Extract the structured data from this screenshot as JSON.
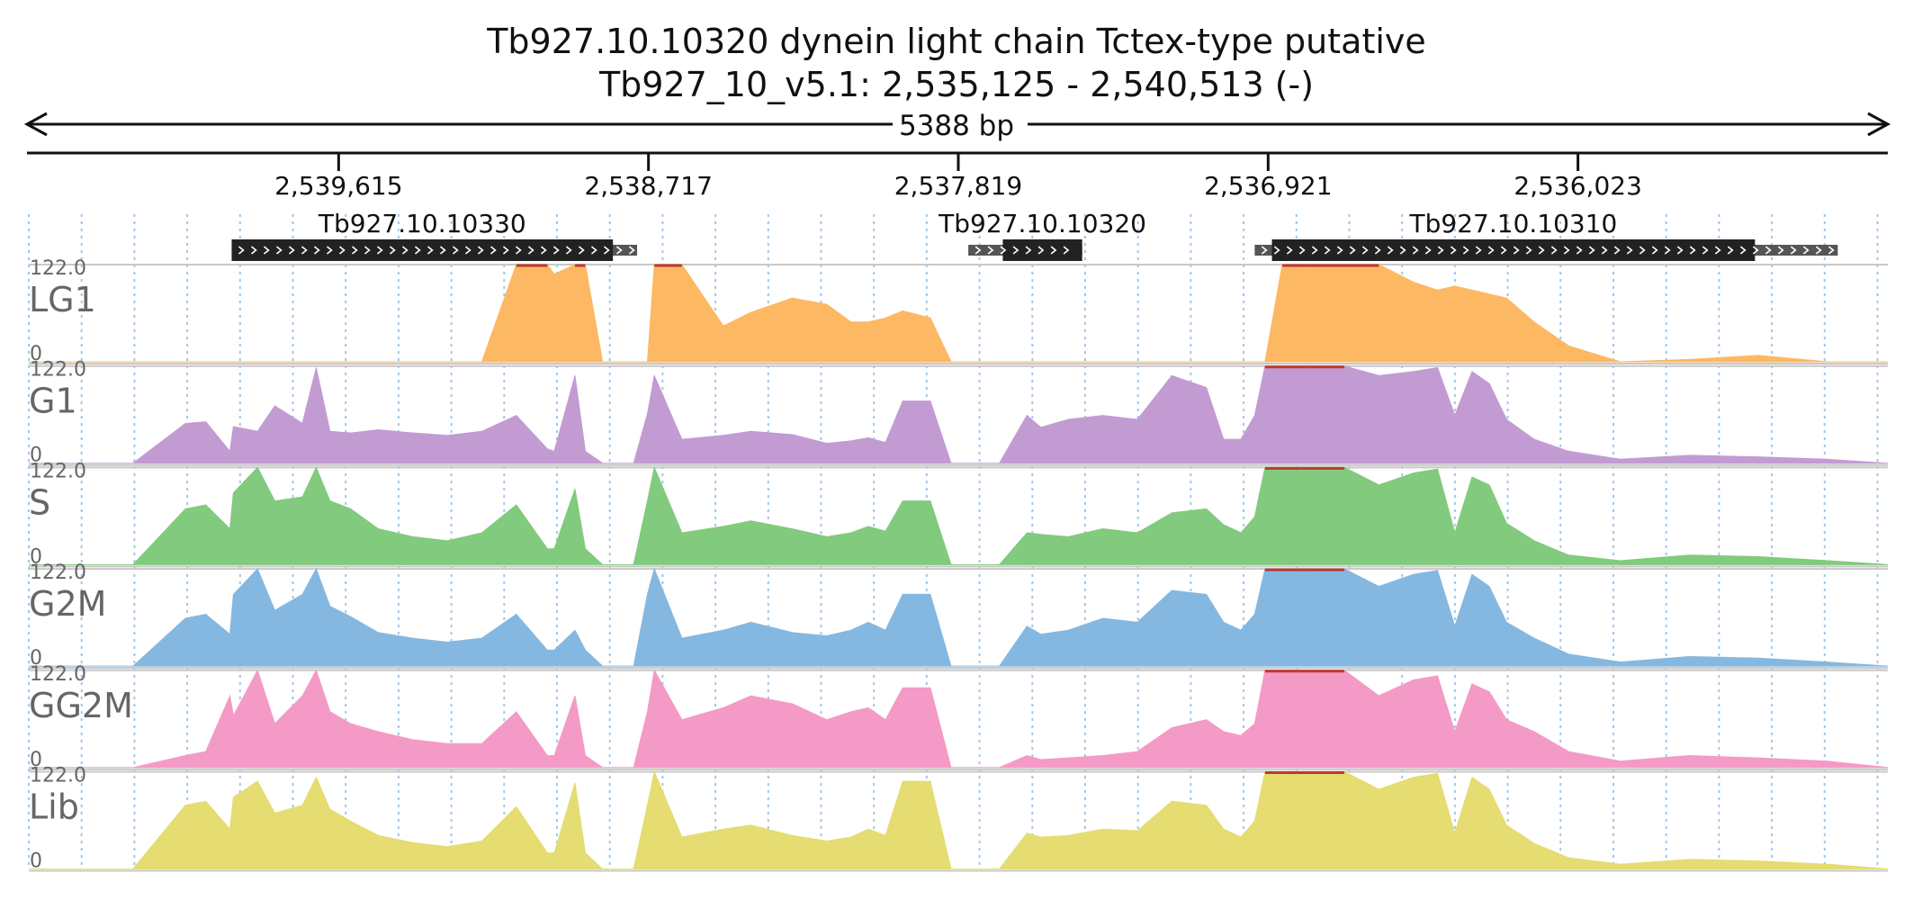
{
  "chart_data": {
    "type": "area",
    "title": "Tb927.10.10320  dynein light chain Tctex-type  putative",
    "subtitle": "Tb927_10_v5.1: 2,535,125 - 2,540,513 (-)",
    "region": {
      "chrom": "Tb927_10_v5.1",
      "start": 2535125,
      "end": 2540513,
      "strand": "-"
    },
    "span_label": "5388 bp",
    "ticks": [
      {
        "value": 2539615,
        "label": "2,539,615"
      },
      {
        "value": 2538717,
        "label": "2,538,717"
      },
      {
        "value": 2537819,
        "label": "2,537,819"
      },
      {
        "value": 2536921,
        "label": "2,536,921"
      },
      {
        "value": 2536023,
        "label": "2,536,023"
      }
    ],
    "genes": [
      {
        "name": "Tb927.10.10330",
        "start": 2538750,
        "end": 2539925,
        "cds_start": 2538820,
        "cds_end": 2539925
      },
      {
        "name": "Tb927.10.10320",
        "start": 2537460,
        "end": 2537790,
        "cds_start": 2537460,
        "cds_end": 2537690
      },
      {
        "name": "Tb927.10.10310",
        "start": 2535270,
        "end": 2536960,
        "cds_start": 2535510,
        "cds_end": 2536910
      }
    ],
    "ylim": [
      0,
      122.0
    ],
    "x": [
      2540513,
      2540211,
      2540059,
      2540000,
      2539930,
      2539920,
      2539850,
      2539800,
      2539720,
      2539680,
      2539640,
      2539580,
      2539500,
      2539400,
      2539300,
      2539200,
      2539100,
      2539010,
      2538990,
      2538930,
      2538900,
      2538850,
      2538800,
      2538760,
      2538720,
      2538700,
      2538620,
      2538500,
      2538420,
      2538300,
      2538200,
      2538130,
      2538080,
      2538030,
      2537980,
      2537900,
      2537840,
      2537800,
      2537700,
      2537620,
      2537580,
      2537500,
      2537400,
      2537300,
      2537200,
      2537100,
      2537050,
      2537000,
      2536960,
      2536930,
      2536880,
      2536800,
      2536700,
      2536600,
      2536500,
      2536430,
      2536380,
      2536330,
      2536280,
      2536230,
      2536150,
      2536050,
      2535900,
      2535700,
      2535500,
      2535300,
      2535125
    ],
    "series": [
      {
        "name": "LG1",
        "color": "#fdb863",
        "values": [
          0,
          0,
          0,
          0,
          0,
          0,
          0,
          0,
          0,
          0,
          0,
          0,
          0,
          0,
          0,
          0,
          122,
          122,
          110,
          122,
          122,
          0,
          0,
          0,
          0,
          122,
          122,
          45,
          62,
          80,
          72,
          50,
          50,
          55,
          64,
          55,
          0,
          0,
          0,
          0,
          0,
          0,
          0,
          0,
          0,
          0,
          0,
          0,
          0,
          0,
          122,
          122,
          122,
          122,
          100,
          90,
          95,
          90,
          85,
          80,
          50,
          20,
          0,
          3,
          8,
          0,
          0
        ]
      },
      {
        "name": "G1",
        "color": "#c39bd3",
        "values": [
          0,
          0,
          50,
          52,
          15,
          46,
          40,
          72,
          50,
          120,
          40,
          38,
          42,
          38,
          35,
          40,
          60,
          18,
          15,
          110,
          15,
          0,
          0,
          0,
          62,
          110,
          30,
          35,
          40,
          36,
          25,
          28,
          32,
          26,
          78,
          78,
          0,
          0,
          0,
          60,
          45,
          55,
          60,
          55,
          110,
          95,
          30,
          30,
          60,
          122,
          122,
          122,
          122,
          110,
          115,
          120,
          60,
          115,
          100,
          55,
          30,
          15,
          5,
          10,
          8,
          5,
          0
        ]
      },
      {
        "name": "S",
        "color": "#82ca7d",
        "values": [
          0,
          0,
          70,
          75,
          45,
          90,
          122,
          80,
          85,
          122,
          80,
          70,
          45,
          35,
          30,
          40,
          75,
          20,
          20,
          95,
          20,
          0,
          0,
          0,
          80,
          122,
          40,
          48,
          55,
          45,
          35,
          40,
          48,
          42,
          80,
          80,
          0,
          0,
          0,
          40,
          38,
          35,
          45,
          40,
          65,
          70,
          50,
          40,
          60,
          122,
          122,
          122,
          122,
          100,
          115,
          120,
          40,
          110,
          100,
          52,
          30,
          12,
          5,
          12,
          10,
          5,
          0
        ]
      },
      {
        "name": "G2M",
        "color": "#85b8e0",
        "values": [
          0,
          0,
          60,
          65,
          40,
          90,
          122,
          70,
          90,
          122,
          75,
          62,
          42,
          35,
          30,
          35,
          65,
          20,
          20,
          45,
          20,
          0,
          0,
          0,
          90,
          122,
          35,
          45,
          55,
          42,
          38,
          45,
          55,
          45,
          90,
          90,
          0,
          0,
          0,
          50,
          40,
          45,
          60,
          55,
          95,
          90,
          55,
          45,
          65,
          122,
          122,
          122,
          122,
          100,
          115,
          120,
          50,
          115,
          100,
          55,
          35,
          15,
          5,
          12,
          10,
          5,
          0
        ]
      },
      {
        "name": "GG2M",
        "color": "#f49ac6",
        "values": [
          0,
          0,
          15,
          20,
          90,
          65,
          122,
          55,
          90,
          122,
          70,
          55,
          45,
          35,
          30,
          30,
          70,
          15,
          15,
          90,
          15,
          0,
          0,
          0,
          70,
          122,
          60,
          75,
          90,
          80,
          60,
          70,
          75,
          60,
          100,
          100,
          0,
          0,
          0,
          15,
          10,
          12,
          15,
          20,
          50,
          60,
          45,
          40,
          55,
          122,
          122,
          122,
          122,
          90,
          110,
          115,
          45,
          105,
          95,
          60,
          45,
          20,
          8,
          15,
          12,
          8,
          0
        ]
      },
      {
        "name": "Lib",
        "color": "#e5dc72",
        "values": [
          0,
          0,
          80,
          85,
          50,
          90,
          110,
          70,
          80,
          115,
          75,
          60,
          42,
          33,
          28,
          35,
          78,
          20,
          20,
          108,
          20,
          0,
          0,
          0,
          80,
          122,
          40,
          50,
          55,
          42,
          35,
          40,
          50,
          42,
          110,
          110,
          0,
          0,
          0,
          45,
          40,
          42,
          50,
          48,
          85,
          80,
          50,
          40,
          60,
          122,
          122,
          122,
          122,
          100,
          115,
          120,
          45,
          115,
          100,
          55,
          32,
          14,
          6,
          12,
          10,
          6,
          0
        ]
      }
    ],
    "ymax_label": "122.0",
    "ymin_label": "0",
    "grid": "on",
    "legend": "none"
  }
}
